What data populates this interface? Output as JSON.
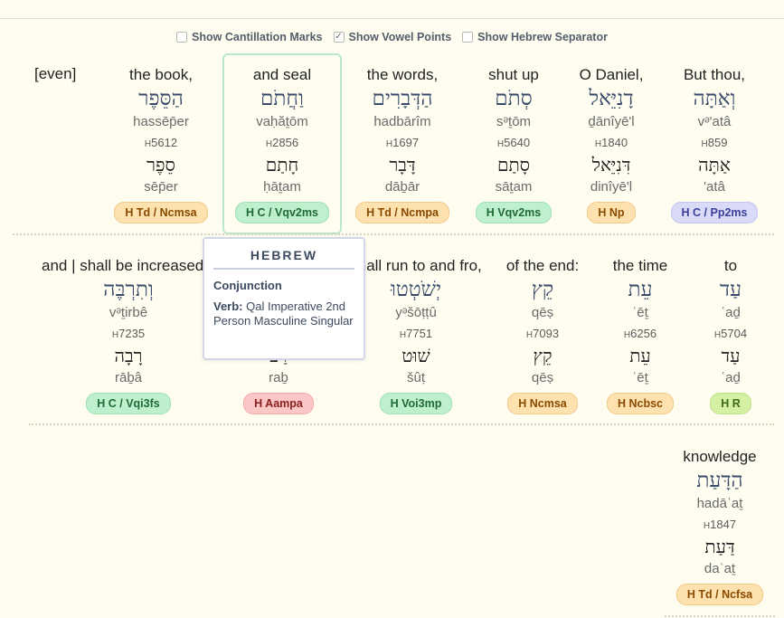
{
  "options": [
    {
      "label": "Show Cantillation Marks",
      "checked": false
    },
    {
      "label": "Show Vowel Points",
      "checked": true
    },
    {
      "label": "Show Hebrew Separator",
      "checked": false
    }
  ],
  "even_label": "[even]",
  "rows": [
    [
      {
        "english": "the book,",
        "hebrew": "הַסֵּפֶר",
        "translit": "hassēp̄er",
        "strong_prefix": "H",
        "strong_num": "5612",
        "root": "סֵפֶר",
        "root_translit": "sēp̄er",
        "tag": "H Td / Ncmsa",
        "tag_color": "orange"
      },
      {
        "english": "and seal",
        "hebrew": "וַחֲתֹם",
        "translit": "vaḥăṯōm",
        "strong_prefix": "H",
        "strong_num": "2856",
        "root": "חָתַם",
        "root_translit": "ḥāṯam",
        "tag": "H C / Vqv2ms",
        "tag_color": "green",
        "highlight": true
      },
      {
        "english": "the words,",
        "hebrew": "הַדְּבָרִים",
        "translit": "hadbārîm",
        "strong_prefix": "H",
        "strong_num": "1697",
        "root": "דָּבָר",
        "root_translit": "dāḇār",
        "tag": "H Td / Ncmpa",
        "tag_color": "orange"
      },
      {
        "english": "shut up",
        "hebrew": "סְתֹם",
        "translit": "sᵊṯōm",
        "strong_prefix": "H",
        "strong_num": "5640",
        "root": "סָתַם",
        "root_translit": "sāṯam",
        "tag": "H Vqv2ms",
        "tag_color": "green"
      },
      {
        "english": "O Daniel,",
        "hebrew": "דָנִיֵּאל",
        "translit": "ḏānîyē'l",
        "strong_prefix": "H",
        "strong_num": "1840",
        "root": "דִּנִיֵּאל",
        "root_translit": "dinîyē'l",
        "tag": "H Np",
        "tag_color": "orange"
      },
      {
        "english": "But thou,",
        "hebrew": "וְאַתָּה",
        "translit": "vᵊ'atâ",
        "strong_prefix": "H",
        "strong_num": "859",
        "root": "אַתָּה",
        "root_translit": "'atâ",
        "tag": "H C / Pp2ms",
        "tag_color": "purple"
      }
    ],
    [
      {
        "english": "and | shall be increased.",
        "hebrew": "וְתִרְבֶּה",
        "translit": "vᵊṯirbê",
        "strong_prefix": "H",
        "strong_num": "7235",
        "root": "רָבָה",
        "root_translit": "rāḇâ",
        "tag": "H C / Vqi3fs",
        "tag_color": "green"
      },
      {
        "english": "",
        "hebrew": "",
        "translit": "",
        "strong_prefix": "",
        "strong_num": "",
        "root": "רַב",
        "root_translit": "raḇ",
        "tag": "H Aampa",
        "tag_color": "pink"
      },
      {
        "english": "shall run to and fro,",
        "hebrew": "יְשֹׁטְטוּ",
        "translit": "yᵊšōṭṭû",
        "strong_prefix": "H",
        "strong_num": "7751",
        "root": "שׁוּט",
        "root_translit": "šûṭ",
        "tag": "H Voi3mp",
        "tag_color": "green"
      },
      {
        "english": "of the end:",
        "hebrew": "קֵץ",
        "translit": "qēṣ",
        "strong_prefix": "H",
        "strong_num": "7093",
        "root": "קֵץ",
        "root_translit": "qēṣ",
        "tag": "H Ncmsa",
        "tag_color": "orange"
      },
      {
        "english": "the time",
        "hebrew": "עֵת",
        "translit": "ʿēṯ",
        "strong_prefix": "H",
        "strong_num": "6256",
        "root": "עֵת",
        "root_translit": "ʿēṯ",
        "tag": "H Ncbsc",
        "tag_color": "orange"
      },
      {
        "english": "to",
        "hebrew": "עַד",
        "translit": "ʿaḏ",
        "strong_prefix": "H",
        "strong_num": "5704",
        "root": "עַד",
        "root_translit": "ʿaḏ",
        "tag": "H R",
        "tag_color": "lime"
      }
    ],
    [
      {
        "english": "knowledge",
        "hebrew": "הַדָּעַת",
        "translit": "hadāʿaṯ",
        "strong_prefix": "H",
        "strong_num": "1847",
        "root": "דַּעַת",
        "root_translit": "daʿaṯ",
        "tag": "H Td / Ncfsa",
        "tag_color": "orange"
      }
    ]
  ],
  "tooltip": {
    "title": "HEBREW",
    "heading": "Conjunction",
    "verb_label": "Verb:",
    "verb_text": "Qal Imperative 2nd Person Masculine Singular"
  }
}
